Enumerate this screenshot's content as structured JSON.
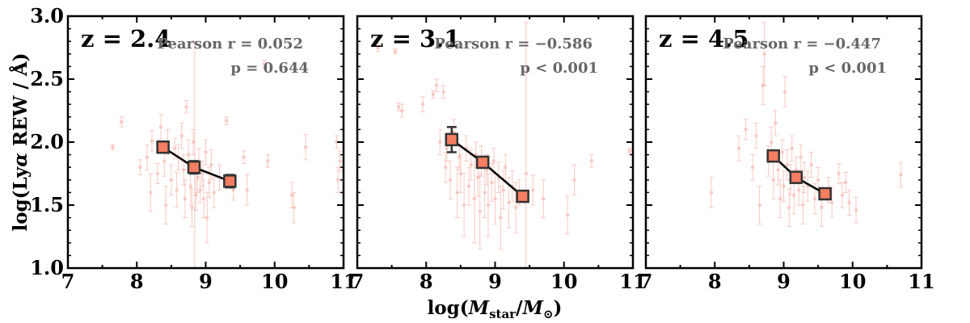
{
  "chart_data": {
    "type": "scatter",
    "xlabel": "log(M_star/M_⊙)",
    "ylabel": "log(Lyα REW / Å)",
    "xlim": [
      7,
      11
    ],
    "ylim": [
      1.0,
      3.0
    ],
    "xticks": [
      "7",
      "8",
      "9",
      "10",
      "11"
    ],
    "yticks": [
      "1.0",
      "1.5",
      "2.0",
      "2.5",
      "3.0"
    ],
    "colors": {
      "points": "#f08a78",
      "binned_fill": "#f47d62",
      "binned_edge": "#333333",
      "line": "#000000"
    },
    "panels": [
      {
        "label": "z = 2.4",
        "stats": {
          "r_text": "Pearson r = 0.052",
          "p_text": "p = 0.644"
        },
        "binned": [
          {
            "x": 8.38,
            "y": 1.96,
            "err": 0.04
          },
          {
            "x": 8.83,
            "y": 1.8,
            "err": 0.05
          },
          {
            "x": 9.35,
            "y": 1.69,
            "err": 0.05
          }
        ],
        "points": [
          {
            "x": 7.65,
            "y": 1.96,
            "e": 0.02
          },
          {
            "x": 7.78,
            "y": 2.16,
            "e": 0.04
          },
          {
            "x": 8.05,
            "y": 1.8,
            "e": 0.06
          },
          {
            "x": 8.15,
            "y": 1.88,
            "e": 0.1
          },
          {
            "x": 8.2,
            "y": 1.6,
            "e": 0.15
          },
          {
            "x": 8.22,
            "y": 2.01,
            "e": 0.08
          },
          {
            "x": 8.3,
            "y": 1.75,
            "e": 0.08
          },
          {
            "x": 8.35,
            "y": 2.12,
            "e": 0.1
          },
          {
            "x": 8.4,
            "y": 1.85,
            "e": 0.12
          },
          {
            "x": 8.42,
            "y": 1.5,
            "e": 0.15
          },
          {
            "x": 8.45,
            "y": 2.0,
            "e": 0.1
          },
          {
            "x": 8.5,
            "y": 1.7,
            "e": 0.12
          },
          {
            "x": 8.55,
            "y": 1.95,
            "e": 0.08
          },
          {
            "x": 8.58,
            "y": 1.62,
            "e": 0.14
          },
          {
            "x": 8.6,
            "y": 1.88,
            "e": 0.1
          },
          {
            "x": 8.65,
            "y": 2.05,
            "e": 0.1
          },
          {
            "x": 8.68,
            "y": 1.78,
            "e": 0.12
          },
          {
            "x": 8.7,
            "y": 1.55,
            "e": 0.15
          },
          {
            "x": 8.72,
            "y": 2.28,
            "e": 0.05
          },
          {
            "x": 8.75,
            "y": 1.9,
            "e": 0.12
          },
          {
            "x": 8.78,
            "y": 1.65,
            "e": 0.15
          },
          {
            "x": 8.8,
            "y": 1.48,
            "e": 0.15
          },
          {
            "x": 8.82,
            "y": 2.0,
            "e": 0.1
          },
          {
            "x": 8.84,
            "y": 1.8,
            "e": 1.0
          },
          {
            "x": 8.86,
            "y": 1.58,
            "e": 0.12
          },
          {
            "x": 8.88,
            "y": 1.72,
            "e": 0.12
          },
          {
            "x": 8.9,
            "y": 1.85,
            "e": 0.1
          },
          {
            "x": 8.92,
            "y": 1.62,
            "e": 0.1
          },
          {
            "x": 8.95,
            "y": 1.75,
            "e": 0.1
          },
          {
            "x": 8.97,
            "y": 1.55,
            "e": 0.15
          },
          {
            "x": 9.0,
            "y": 1.92,
            "e": 0.1
          },
          {
            "x": 9.02,
            "y": 1.4,
            "e": 0.2
          },
          {
            "x": 9.05,
            "y": 1.68,
            "e": 0.12
          },
          {
            "x": 9.08,
            "y": 1.82,
            "e": 0.12
          },
          {
            "x": 9.12,
            "y": 1.6,
            "e": 0.12
          },
          {
            "x": 9.2,
            "y": 1.72,
            "e": 0.1
          },
          {
            "x": 9.3,
            "y": 2.17,
            "e": 0.03
          },
          {
            "x": 9.4,
            "y": 1.62,
            "e": 0.08
          },
          {
            "x": 9.55,
            "y": 1.88,
            "e": 0.05
          },
          {
            "x": 9.6,
            "y": 1.62,
            "e": 0.12
          },
          {
            "x": 9.85,
            "y": 2.62,
            "e": 0.03
          },
          {
            "x": 9.9,
            "y": 1.85,
            "e": 0.05
          },
          {
            "x": 10.25,
            "y": 1.58,
            "e": 0.1
          },
          {
            "x": 10.28,
            "y": 1.48,
            "e": 0.12
          },
          {
            "x": 10.45,
            "y": 1.96,
            "e": 0.1
          },
          {
            "x": 10.9,
            "y": 2.0,
            "e": 0.05
          },
          {
            "x": 10.92,
            "y": 1.7,
            "e": 0.1
          },
          {
            "x": 10.95,
            "y": 1.85,
            "e": 0.08
          }
        ]
      },
      {
        "label": "z = 3.1",
        "stats": {
          "r_text": "Pearson r = −0.586",
          "p_text": "p < 0.001"
        },
        "binned": [
          {
            "x": 8.37,
            "y": 2.02,
            "err": 0.1
          },
          {
            "x": 8.82,
            "y": 1.84,
            "err": 0.03
          },
          {
            "x": 9.4,
            "y": 1.57,
            "err": 0.03
          }
        ],
        "points": [
          {
            "x": 7.3,
            "y": 2.75,
            "e": 0.03
          },
          {
            "x": 7.55,
            "y": 2.72,
            "e": 0.02
          },
          {
            "x": 7.6,
            "y": 2.28,
            "e": 0.03
          },
          {
            "x": 7.65,
            "y": 2.25,
            "e": 0.05
          },
          {
            "x": 7.95,
            "y": 2.3,
            "e": 0.06
          },
          {
            "x": 8.05,
            "y": 2.85,
            "e": 0.03
          },
          {
            "x": 8.1,
            "y": 2.38,
            "e": 0.03
          },
          {
            "x": 8.15,
            "y": 2.45,
            "e": 0.05
          },
          {
            "x": 8.2,
            "y": 2.0,
            "e": 0.1
          },
          {
            "x": 8.25,
            "y": 2.4,
            "e": 0.05
          },
          {
            "x": 8.28,
            "y": 1.8,
            "e": 0.12
          },
          {
            "x": 8.3,
            "y": 1.95,
            "e": 0.1
          },
          {
            "x": 8.35,
            "y": 1.7,
            "e": 0.15
          },
          {
            "x": 8.4,
            "y": 2.08,
            "e": 0.1
          },
          {
            "x": 8.45,
            "y": 1.6,
            "e": 0.2
          },
          {
            "x": 8.48,
            "y": 1.88,
            "e": 0.1
          },
          {
            "x": 8.5,
            "y": 1.75,
            "e": 0.15
          },
          {
            "x": 8.55,
            "y": 1.5,
            "e": 0.25
          },
          {
            "x": 8.58,
            "y": 1.95,
            "e": 0.1
          },
          {
            "x": 8.62,
            "y": 1.65,
            "e": 0.15
          },
          {
            "x": 8.65,
            "y": 1.82,
            "e": 0.12
          },
          {
            "x": 8.7,
            "y": 1.55,
            "e": 0.35
          },
          {
            "x": 8.72,
            "y": 1.9,
            "e": 0.1
          },
          {
            "x": 8.75,
            "y": 1.72,
            "e": 0.15
          },
          {
            "x": 8.78,
            "y": 1.45,
            "e": 0.3
          },
          {
            "x": 8.8,
            "y": 1.85,
            "e": 0.12
          },
          {
            "x": 8.85,
            "y": 1.6,
            "e": 0.2
          },
          {
            "x": 8.88,
            "y": 1.78,
            "e": 0.12
          },
          {
            "x": 8.9,
            "y": 1.5,
            "e": 0.25
          },
          {
            "x": 8.95,
            "y": 1.68,
            "e": 0.15
          },
          {
            "x": 8.98,
            "y": 1.85,
            "e": 0.1
          },
          {
            "x": 9.0,
            "y": 1.55,
            "e": 0.2
          },
          {
            "x": 9.05,
            "y": 1.72,
            "e": 0.12
          },
          {
            "x": 9.08,
            "y": 1.4,
            "e": 0.25
          },
          {
            "x": 9.12,
            "y": 1.62,
            "e": 0.15
          },
          {
            "x": 9.15,
            "y": 1.8,
            "e": 0.1
          },
          {
            "x": 9.2,
            "y": 1.52,
            "e": 0.2
          },
          {
            "x": 9.25,
            "y": 1.65,
            "e": 0.12
          },
          {
            "x": 9.3,
            "y": 1.48,
            "e": 0.2
          },
          {
            "x": 9.35,
            "y": 1.6,
            "e": 0.1
          },
          {
            "x": 9.45,
            "y": 1.75,
            "e": 1.2
          },
          {
            "x": 9.55,
            "y": 1.62,
            "e": 0.12
          },
          {
            "x": 9.7,
            "y": 1.55,
            "e": 0.15
          },
          {
            "x": 10.05,
            "y": 1.42,
            "e": 0.15
          },
          {
            "x": 10.15,
            "y": 1.7,
            "e": 0.12
          },
          {
            "x": 10.4,
            "y": 1.85,
            "e": 0.05
          },
          {
            "x": 10.95,
            "y": 1.93,
            "e": 0.02
          }
        ]
      },
      {
        "label": "z = 4.5",
        "stats": {
          "r_text": "Pearson r = −0.447",
          "p_text": "p < 0.001"
        },
        "binned": [
          {
            "x": 8.85,
            "y": 1.89,
            "err": 0.03
          },
          {
            "x": 9.18,
            "y": 1.72,
            "err": 0.03
          },
          {
            "x": 9.6,
            "y": 1.59,
            "err": 0.03
          }
        ],
        "points": [
          {
            "x": 7.95,
            "y": 1.6,
            "e": 0.12
          },
          {
            "x": 8.35,
            "y": 1.95,
            "e": 0.1
          },
          {
            "x": 8.45,
            "y": 2.1,
            "e": 0.08
          },
          {
            "x": 8.55,
            "y": 1.8,
            "e": 0.1
          },
          {
            "x": 8.6,
            "y": 2.05,
            "e": 0.1
          },
          {
            "x": 8.65,
            "y": 1.5,
            "e": 0.15
          },
          {
            "x": 8.7,
            "y": 2.45,
            "e": 0.15
          },
          {
            "x": 8.72,
            "y": 2.7,
            "e": 0.25
          },
          {
            "x": 8.78,
            "y": 1.85,
            "e": 0.12
          },
          {
            "x": 8.82,
            "y": 2.0,
            "e": 0.12
          },
          {
            "x": 8.85,
            "y": 1.7,
            "e": 0.15
          },
          {
            "x": 8.88,
            "y": 2.15,
            "e": 0.1
          },
          {
            "x": 8.92,
            "y": 1.78,
            "e": 0.12
          },
          {
            "x": 8.95,
            "y": 1.55,
            "e": 0.15
          },
          {
            "x": 8.98,
            "y": 1.92,
            "e": 0.1
          },
          {
            "x": 9.0,
            "y": 1.65,
            "e": 0.12
          },
          {
            "x": 9.02,
            "y": 2.4,
            "e": 0.12
          },
          {
            "x": 9.05,
            "y": 1.82,
            "e": 0.12
          },
          {
            "x": 9.08,
            "y": 1.48,
            "e": 0.15
          },
          {
            "x": 9.1,
            "y": 1.7,
            "e": 0.12
          },
          {
            "x": 9.12,
            "y": 1.95,
            "e": 0.1
          },
          {
            "x": 9.15,
            "y": 1.58,
            "e": 0.15
          },
          {
            "x": 9.18,
            "y": 1.78,
            "e": 0.1
          },
          {
            "x": 9.22,
            "y": 1.62,
            "e": 0.12
          },
          {
            "x": 9.25,
            "y": 1.88,
            "e": 0.1
          },
          {
            "x": 9.28,
            "y": 1.5,
            "e": 0.15
          },
          {
            "x": 9.3,
            "y": 1.72,
            "e": 0.12
          },
          {
            "x": 9.35,
            "y": 1.65,
            "e": 0.12
          },
          {
            "x": 9.4,
            "y": 1.82,
            "e": 0.1
          },
          {
            "x": 9.45,
            "y": 1.55,
            "e": 0.12
          },
          {
            "x": 9.5,
            "y": 1.7,
            "e": 0.1
          },
          {
            "x": 9.55,
            "y": 1.48,
            "e": 0.15
          },
          {
            "x": 9.65,
            "y": 1.62,
            "e": 0.1
          },
          {
            "x": 9.7,
            "y": 1.52,
            "e": 0.12
          },
          {
            "x": 9.8,
            "y": 1.75,
            "e": 0.08
          },
          {
            "x": 9.85,
            "y": 1.58,
            "e": 0.1
          },
          {
            "x": 9.9,
            "y": 1.68,
            "e": 0.08
          },
          {
            "x": 9.95,
            "y": 1.52,
            "e": 0.1
          },
          {
            "x": 10.05,
            "y": 1.46,
            "e": 0.1
          },
          {
            "x": 10.7,
            "y": 1.74,
            "e": 0.1
          }
        ]
      }
    ]
  }
}
